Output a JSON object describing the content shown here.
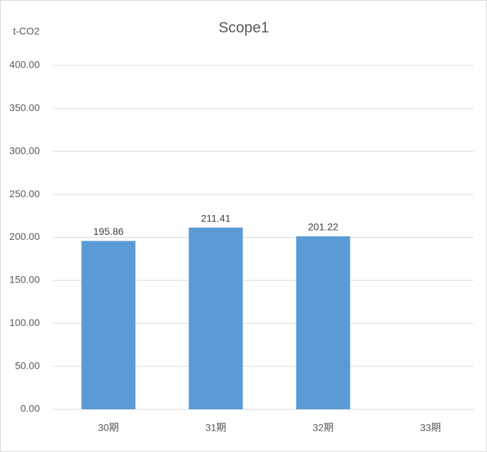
{
  "chart_data": {
    "type": "bar",
    "title": "Scope1",
    "y_label": "t-CO2",
    "categories": [
      "30期",
      "31期",
      "32期",
      "33期"
    ],
    "values": [
      195.86,
      211.41,
      201.22,
      null
    ],
    "color": "#5b9bd5",
    "ylim": [
      0,
      400
    ],
    "yticks": [
      {
        "value": 0,
        "label": "0.00"
      },
      {
        "value": 50,
        "label": "50.00"
      },
      {
        "value": 100,
        "label": "100.00"
      },
      {
        "value": 150,
        "label": "150.00"
      },
      {
        "value": 200,
        "label": "200.00"
      },
      {
        "value": 250,
        "label": "250.00"
      },
      {
        "value": 300,
        "label": "300.00"
      },
      {
        "value": 350,
        "label": "350.00"
      },
      {
        "value": 400,
        "label": "400.00"
      }
    ],
    "grid": true
  }
}
